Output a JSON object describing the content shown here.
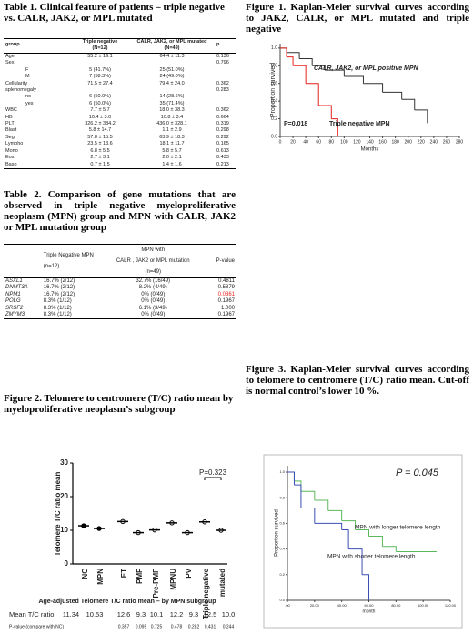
{
  "table1": {
    "title": "Table 1. Clinical feature of patients – triple negative vs. CALR, JAK2, or MPL mutated",
    "header": [
      "group",
      "Triple negative\n(N=12)",
      "CALR, JAK2, or MPL mutated\n(N=49)",
      "p"
    ],
    "rows": [
      [
        "Age",
        "55.2 ± 19.1",
        "64.4 ± 11.3",
        "0.136"
      ],
      [
        "Sex",
        "",
        "",
        "0.796"
      ],
      [
        "F",
        "5 (41.7%)",
        "25 (51.0%)",
        ""
      ],
      [
        "M",
        "7 (58.3%)",
        "24 (49.0%)",
        ""
      ],
      [
        "Cellularity",
        "71.5 ± 27.4",
        "79.4 ± 24.0",
        "0.362"
      ],
      [
        "splenomegaly",
        "",
        "",
        "0.283"
      ],
      [
        "no",
        "6 (50.0%)",
        "14 (28.6%)",
        ""
      ],
      [
        "yes",
        "6 (50.0%)",
        "35 (71.4%)",
        ""
      ],
      [
        "WBC",
        "7.7 ± 5.7",
        "18.0 ± 38.3",
        "0.362"
      ],
      [
        "HB",
        "10.4 ± 3.0",
        "10.8 ± 3.4",
        "0.664"
      ],
      [
        "PLT",
        "326.2 ± 384.2",
        "436.0 ± 328.1",
        "0.319"
      ],
      [
        "Blast",
        "5.8 ± 14.7",
        "1.1 ± 2.9",
        "0.298"
      ],
      [
        "Seg",
        "57.8 ± 15.5",
        "63.9 ± 18.3",
        "0.292"
      ],
      [
        "Lympho",
        "23.5 ± 13.6",
        "18.1 ± 11.7",
        "0.165"
      ],
      [
        "Mono",
        "6.8 ± 5.5",
        "5.8 ± 5.7",
        "0.613"
      ],
      [
        "Eos",
        "2.7 ± 3.1",
        "2.0 ± 2.1",
        "0.433"
      ],
      [
        "Baso",
        "0.7 ± 1.5",
        "1.4 ± 1.6",
        "0.213"
      ]
    ]
  },
  "table2": {
    "title": "Table 2. Comparison of gene mutations that are observed in triple negative myeloproliferative neoplasm (MPN) group and MPN with CALR, JAK2 or MPL mutation group",
    "header": [
      "",
      "Triple Negative MPN\n\n(n=12)",
      "MPN with\n\nCALR , JAK2 or MPL mutation\n\n(n=49)",
      "P-value"
    ],
    "rows": [
      [
        "ASXL1",
        "16.7% (2/12)",
        "32.7% (16/49)",
        "0.4811"
      ],
      [
        "DNMT3A",
        "16.7% (2/12)",
        "8.2% (4/49)",
        "0.5879"
      ],
      [
        "NPM1",
        "16.7% (2/12)",
        "0% (0/49)",
        "0.0361"
      ],
      [
        "POLG",
        "8.3% (1/12)",
        "0% (0/49)",
        "0.1967"
      ],
      [
        "SRSF2",
        "8.3% (1/12)",
        "6.1% (3/49)",
        "1.000"
      ],
      [
        "ZMYM3",
        "8.3% (1/12)",
        "0% (0/49)",
        "0.1967"
      ]
    ],
    "highlight_color": "#e8201a",
    "highlight_cell": [
      2,
      3
    ]
  },
  "figure1": {
    "type": "line",
    "title": "Figure 1. Kaplan-Meier survival curves according to JAK2, CALR, or MPL mutated and triple negative",
    "ylabel": "Proportion survived",
    "xlabel": "Months",
    "xlim": [
      0,
      280
    ],
    "xticks": [
      0,
      20,
      40,
      60,
      80,
      100,
      120,
      140,
      160,
      180,
      200,
      220,
      240,
      260,
      280
    ],
    "ylim": [
      0,
      1.05
    ],
    "yticks": [
      {
        "value": 0,
        "label": "0.0"
      },
      {
        "value": 0.2,
        "label": "0.2"
      },
      {
        "value": 0.4,
        "label": "0.4"
      },
      {
        "value": 0.6,
        "label": "0.6"
      },
      {
        "value": 0.8,
        "label": "0.8"
      },
      {
        "value": 1,
        "label": "1.0"
      }
    ],
    "annotations": [
      "CALR, JAK2, or MPL positive MPN",
      "P=0.018",
      "Triple negative MPN"
    ],
    "series": [
      {
        "color": "#333333",
        "x": [
          0,
          10,
          30,
          50,
          70,
          100,
          130,
          160,
          190,
          210,
          230
        ],
        "y": [
          1,
          0.95,
          0.88,
          0.8,
          0.75,
          0.68,
          0.6,
          0.5,
          0.42,
          0.3,
          0.15
        ]
      },
      {
        "color": "#e8201a",
        "x": [
          0,
          10,
          20,
          40,
          60,
          80,
          90
        ],
        "y": [
          1,
          0.9,
          0.8,
          0.6,
          0.35,
          0.2,
          0
        ]
      }
    ]
  },
  "figure2": {
    "type": "dot",
    "title": "Figure 2. Telomere to centromere (T/C) ratio mean by myeloproliferative neoplasm’s subgroup",
    "ylabel": "Telomere T/C ratio mean",
    "ylim": [
      0,
      30
    ],
    "yticks": [
      0,
      10,
      20,
      30
    ],
    "categories": [
      "NC",
      "MPN",
      "ET",
      "PMF",
      "Pre-PMF",
      "MPNU",
      "PV",
      "Triple negative",
      "mutated"
    ],
    "annotation": "P=0.323",
    "subtitle": "Age-adjusted Telomere T/C ratio mean – by MPN subgroup",
    "mean_label": "Mean T/C ratio",
    "values": [
      11.34,
      10.53,
      12.6,
      9.3,
      10.1,
      12.2,
      9.3,
      12.5,
      10.0
    ],
    "value_labels": [
      "11.34",
      "10.53",
      "12.6",
      "9.3",
      "10.1",
      "12.2",
      "9.3",
      "12.5",
      "10.0"
    ],
    "p_label": "P-value (compare with NC)",
    "p_values": [
      null,
      null,
      0.357,
      0.095,
      0.725,
      0.478,
      0.282,
      0.431,
      0.244
    ]
  },
  "figure3": {
    "type": "line",
    "title": "Figure 3. Kaplan-Meier survival curves according to telomere to centromere (T/C) ratio mean. Cut-off is normal control’s lower 10 %.",
    "ylabel": "Proportion survived",
    "xlabel": "month",
    "xlim": [
      0,
      120
    ],
    "xticks": [
      {
        "value": 0,
        "label": ".00"
      },
      {
        "value": 20,
        "label": "20.00"
      },
      {
        "value": 40,
        "label": "40.00"
      },
      {
        "value": 60,
        "label": "60.00"
      },
      {
        "value": 80,
        "label": "80.00"
      },
      {
        "value": 100,
        "label": "100.00"
      },
      {
        "value": 120,
        "label": "120.00"
      }
    ],
    "ylim": [
      0,
      1.05
    ],
    "yticks": [
      {
        "value": 0,
        "label": "0.0"
      },
      {
        "value": 0.2,
        "label": "0.2"
      },
      {
        "value": 0.4,
        "label": "0.4"
      },
      {
        "value": 0.6,
        "label": "0.6"
      },
      {
        "value": 0.8,
        "label": "0.8"
      },
      {
        "value": 1,
        "label": "1.0"
      }
    ],
    "annotations": [
      "P = 0.045",
      "MPN with longer telomere length",
      "MPN with shorter telomere length"
    ],
    "series": [
      {
        "color": "#5cb85c",
        "x": [
          0,
          5,
          10,
          20,
          30,
          40,
          50,
          60,
          70,
          80,
          110
        ],
        "y": [
          1,
          0.93,
          0.85,
          0.78,
          0.7,
          0.62,
          0.55,
          0.5,
          0.42,
          0.38,
          0.38
        ]
      },
      {
        "color": "#3b4fb5",
        "x": [
          0,
          5,
          10,
          20,
          40,
          45,
          55,
          60
        ],
        "y": [
          1,
          0.9,
          0.72,
          0.6,
          0.55,
          0.4,
          0.2,
          0
        ]
      }
    ]
  }
}
